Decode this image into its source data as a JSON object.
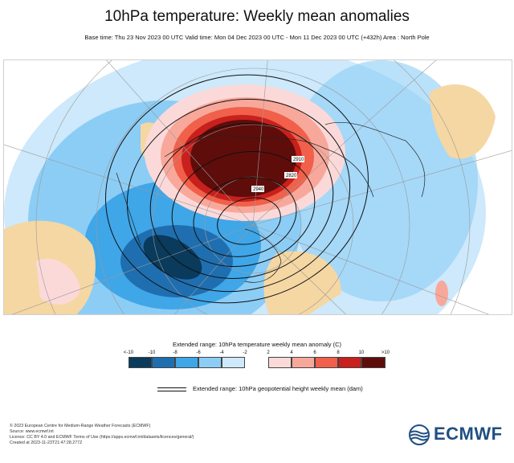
{
  "header": {
    "title": "10hPa temperature: Weekly mean anomalies",
    "subtitle": "Base time: Thu 23 Nov 2023 00 UTC Valid time: Mon 04 Dec 2023 00 UTC - Mon 11 Dec 2023 00 UTC (+432h) Area : North Pole"
  },
  "map": {
    "area": "North Pole",
    "height_contour_labels": [
      "2910",
      "2820",
      "2940"
    ]
  },
  "colorbar": {
    "title": "Extended range: 10hPa temperature weekly mean anomaly (C)",
    "ticks": [
      "<-10",
      "-10",
      "-8",
      "-6",
      "-4",
      "-2",
      "2",
      "4",
      "6",
      "8",
      "10",
      ">10"
    ],
    "colors": [
      "#0a3a5c",
      "#1f6fb0",
      "#3fa6e8",
      "#8ccdf6",
      "#cde9fb",
      "#ffffff",
      "#fcd9d9",
      "#f8a89a",
      "#f0604a",
      "#c8201c",
      "#5e0d0a"
    ]
  },
  "contour_legend": {
    "label": "Extended range: 10hPa geopotential height weekly mean (dam)"
  },
  "credits": {
    "lines": [
      "© 2023 European Centre for Medium-Range Weather Forecasts (ECMWF)",
      "Source: www.ecmwf.int",
      "Licence: CC BY 4.0 and ECMWF Terms of Use (https://apps.ecmwf.int/datasets/licences/general/)",
      "Created at 2023-11-23T21:47:28.277Z"
    ]
  },
  "logo": {
    "text": "ECMWF"
  }
}
